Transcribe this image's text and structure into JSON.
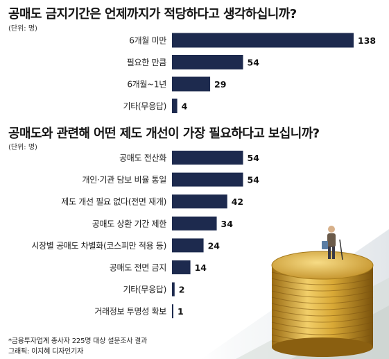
{
  "chart_data": [
    {
      "type": "bar",
      "title": "공매도 금지기간은 언제까지가 적당하다고 생각하십니까?",
      "unit": "(단위: 명)",
      "categories": [
        "6개월 미만",
        "필요한 만큼",
        "6개월~1년",
        "기타(무응답)"
      ],
      "values": [
        138,
        54,
        29,
        4
      ]
    },
    {
      "type": "bar",
      "title": "공매도와 관련해 어떤 제도 개선이 가장 필요하다고 보십니까?",
      "unit": "(단위: 명)",
      "categories": [
        "공매도 전산화",
        "개인·기관 담보 비율 통일",
        "제도 개선 필요 없다(전면 재개)",
        "공매도 상환 기간 제한",
        "시장별 공매도 차별화(코스피만 적용 등)",
        "공매도 전면 금지",
        "기타(무응답)",
        "거래정보 투명성 확보"
      ],
      "values": [
        54,
        54,
        42,
        34,
        24,
        14,
        2,
        1
      ]
    }
  ],
  "footer": {
    "note": "*금융투자업계 종사자 225명 대상 설문조사 결과",
    "credit": "그래픽: 이지혜 디자인기자"
  },
  "colors": {
    "bar": "#1d2a4e"
  }
}
